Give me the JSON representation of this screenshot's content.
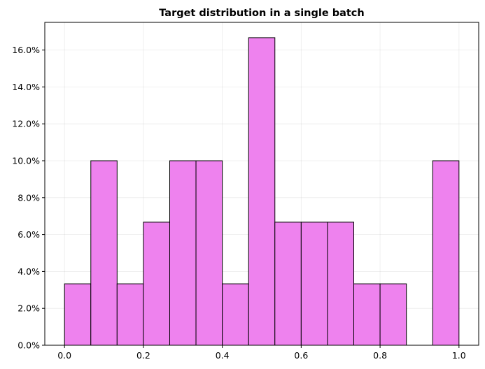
{
  "chart_data": {
    "type": "bar",
    "title": "Target distribution in a single batch",
    "xlabel": "",
    "ylabel": "",
    "xlim": [
      -0.05,
      1.05
    ],
    "ylim": [
      0,
      17.5
    ],
    "bin_edges": [
      0,
      0.0667,
      0.1333,
      0.2,
      0.2667,
      0.3333,
      0.4,
      0.4667,
      0.5333,
      0.6,
      0.6667,
      0.7333,
      0.8,
      0.8667,
      0.9333,
      1.0
    ],
    "values": [
      3.33,
      10.0,
      3.33,
      6.67,
      10.0,
      10.0,
      3.33,
      16.67,
      6.67,
      6.67,
      6.67,
      3.33,
      3.33,
      0,
      10.0
    ],
    "x_ticks": [
      0.0,
      0.2,
      0.4,
      0.6,
      0.8,
      1.0
    ],
    "x_tick_labels": [
      "0.0",
      "0.2",
      "0.4",
      "0.6",
      "0.8",
      "1.0"
    ],
    "y_ticks": [
      0,
      2,
      4,
      6,
      8,
      10,
      12,
      14,
      16
    ],
    "y_tick_labels": [
      "0.0%",
      "2.0%",
      "4.0%",
      "6.0%",
      "8.0%",
      "10.0%",
      "12.0%",
      "14.0%",
      "16.0%"
    ],
    "grid": true,
    "colors": {
      "bar_fill": "#ee82ee",
      "bar_edge": "#000000"
    }
  }
}
